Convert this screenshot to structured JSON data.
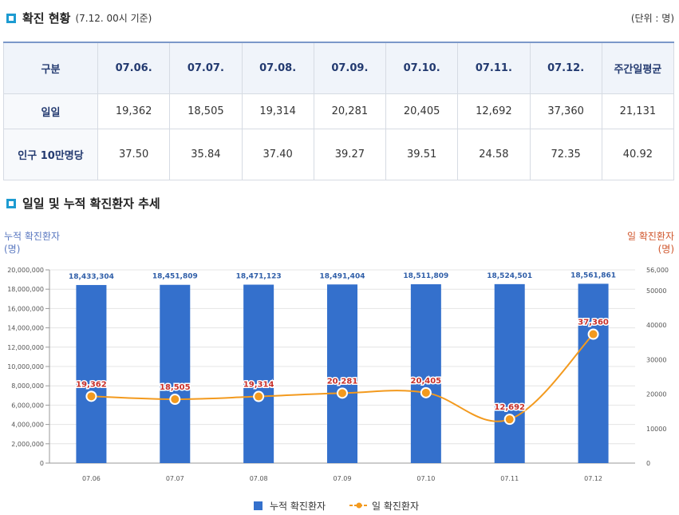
{
  "header": {
    "title": "확진 현황",
    "note": "(7.12. 00시 기준)",
    "unit": "(단위 : 명)"
  },
  "table": {
    "corner": "구분",
    "columns": [
      "07.06.",
      "07.07.",
      "07.08.",
      "07.09.",
      "07.10.",
      "07.11.",
      "07.12.",
      "주간일평균"
    ],
    "rows": [
      {
        "label": "일일",
        "values": [
          "19,362",
          "18,505",
          "19,314",
          "20,281",
          "20,405",
          "12,692",
          "37,360",
          "21,131"
        ]
      },
      {
        "label": "인구 10만명당",
        "values": [
          "37.50",
          "35.84",
          "37.40",
          "39.27",
          "39.51",
          "24.58",
          "72.35",
          "40.92"
        ]
      }
    ]
  },
  "trend_title": "일일 및 누적 확진환자 추세",
  "chart_data": {
    "type": "bar",
    "categories": [
      "07.06",
      "07.07",
      "07.08",
      "07.09",
      "07.10",
      "07.11",
      "07.12"
    ],
    "series": [
      {
        "name": "누적 확진환자",
        "type": "bar",
        "axis": "left",
        "color": "#3470cc",
        "values": [
          18433304,
          18451809,
          18471123,
          18491404,
          18511809,
          18524501,
          18561861
        ],
        "labels": [
          "18,433,304",
          "18,451,809",
          "18,471,123",
          "18,491,404",
          "18,511,809",
          "18,524,501",
          "18,561,861"
        ]
      },
      {
        "name": "일 확진환자",
        "type": "line",
        "axis": "right",
        "color": "#f39a1e",
        "values": [
          19362,
          18505,
          19314,
          20281,
          20405,
          12692,
          37360
        ],
        "labels": [
          "19,362",
          "18,505",
          "19,314",
          "20,281",
          "20,405",
          "12,692",
          "37,360"
        ]
      }
    ],
    "left_axis": {
      "title": "누적 확진환자",
      "unit": "(명)",
      "min": 0,
      "max": 20000000,
      "ticks": [
        "0",
        "2,000,000",
        "4,000,000",
        "6,000,000",
        "8,000,000",
        "10,000,000",
        "12,000,000",
        "14,000,000",
        "16,000,000",
        "18,000,000",
        "20,000,000"
      ]
    },
    "right_axis": {
      "title": "일 확진환자",
      "unit": "(명)",
      "min": 0,
      "max": 56000,
      "ticks": [
        "0",
        "10000",
        "20000",
        "30000",
        "40000",
        "50000",
        "56,000"
      ]
    },
    "legend_position": "bottom",
    "grid": true
  }
}
